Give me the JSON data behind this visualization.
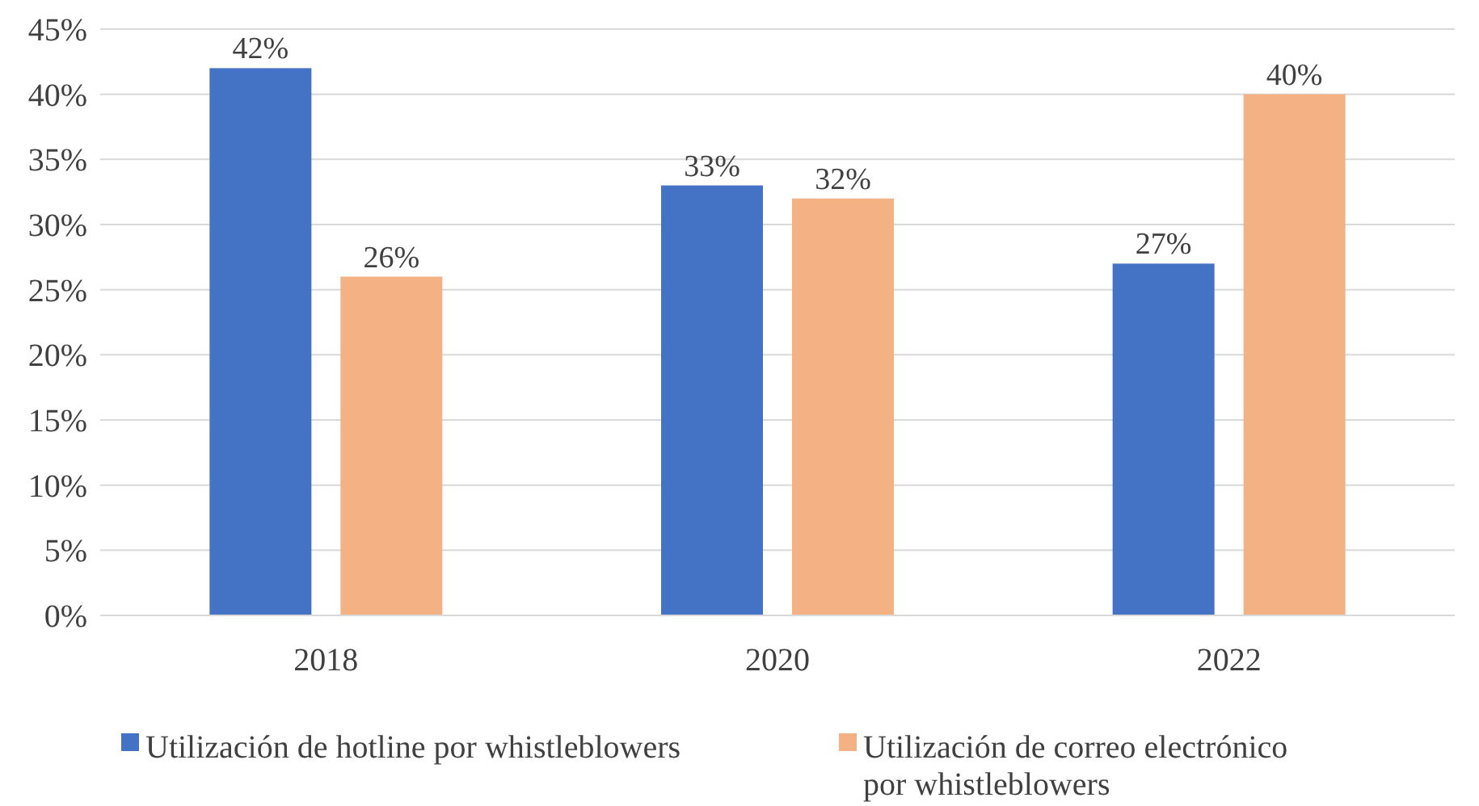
{
  "chart_data": {
    "type": "bar",
    "categories": [
      "2018",
      "2020",
      "2022"
    ],
    "series": [
      {
        "name": "Utilización de hotline por whistleblowers",
        "color": "#4472c4",
        "values": [
          42,
          33,
          27
        ],
        "value_labels": [
          "42%",
          "33%",
          "27%"
        ]
      },
      {
        "name": "Utilización de correo electrónico por whistleblowers",
        "color": "#f4b183",
        "values": [
          26,
          32,
          40
        ],
        "value_labels": [
          "26%",
          "32%",
          "40%"
        ]
      }
    ],
    "ylim": [
      0,
      45
    ],
    "yticks": [
      {
        "value": 0,
        "label": "0%"
      },
      {
        "value": 5,
        "label": "5%"
      },
      {
        "value": 10,
        "label": "10%"
      },
      {
        "value": 15,
        "label": "15%"
      },
      {
        "value": 20,
        "label": "20%"
      },
      {
        "value": 25,
        "label": "25%"
      },
      {
        "value": 30,
        "label": "30%"
      },
      {
        "value": 35,
        "label": "35%"
      },
      {
        "value": 40,
        "label": "40%"
      },
      {
        "value": 45,
        "label": "45%"
      }
    ],
    "grid": "y",
    "legend": "bottom"
  }
}
